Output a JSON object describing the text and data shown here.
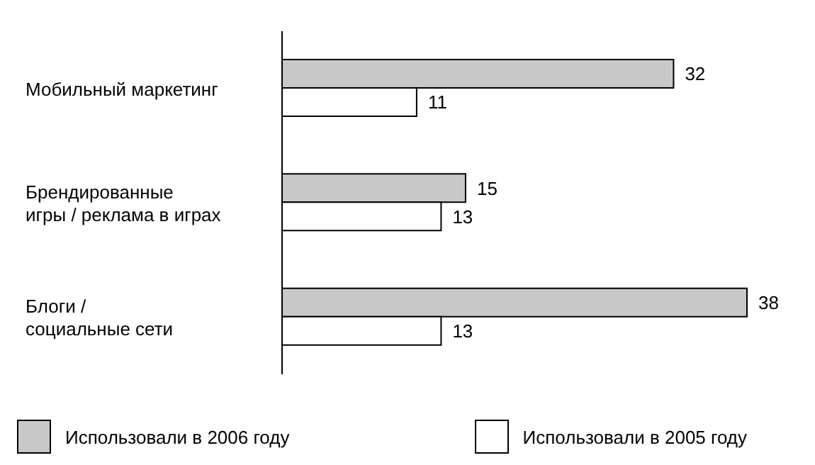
{
  "chart_data": {
    "type": "bar",
    "orientation": "horizontal",
    "categories": [
      "Мобильный маркетинг",
      "Брендированные\nигры / реклама в играх",
      "Блоги /\nсоциальные сети"
    ],
    "series": [
      {
        "name": "Использовали в 2006 году",
        "color": "#c8c8c8",
        "values": [
          32,
          15,
          38
        ]
      },
      {
        "name": "Использовали в 2005 году",
        "color": "#ffffff",
        "values": [
          11,
          13,
          13
        ]
      }
    ],
    "data_labels": true,
    "legend": "bottom",
    "grid": false
  }
}
